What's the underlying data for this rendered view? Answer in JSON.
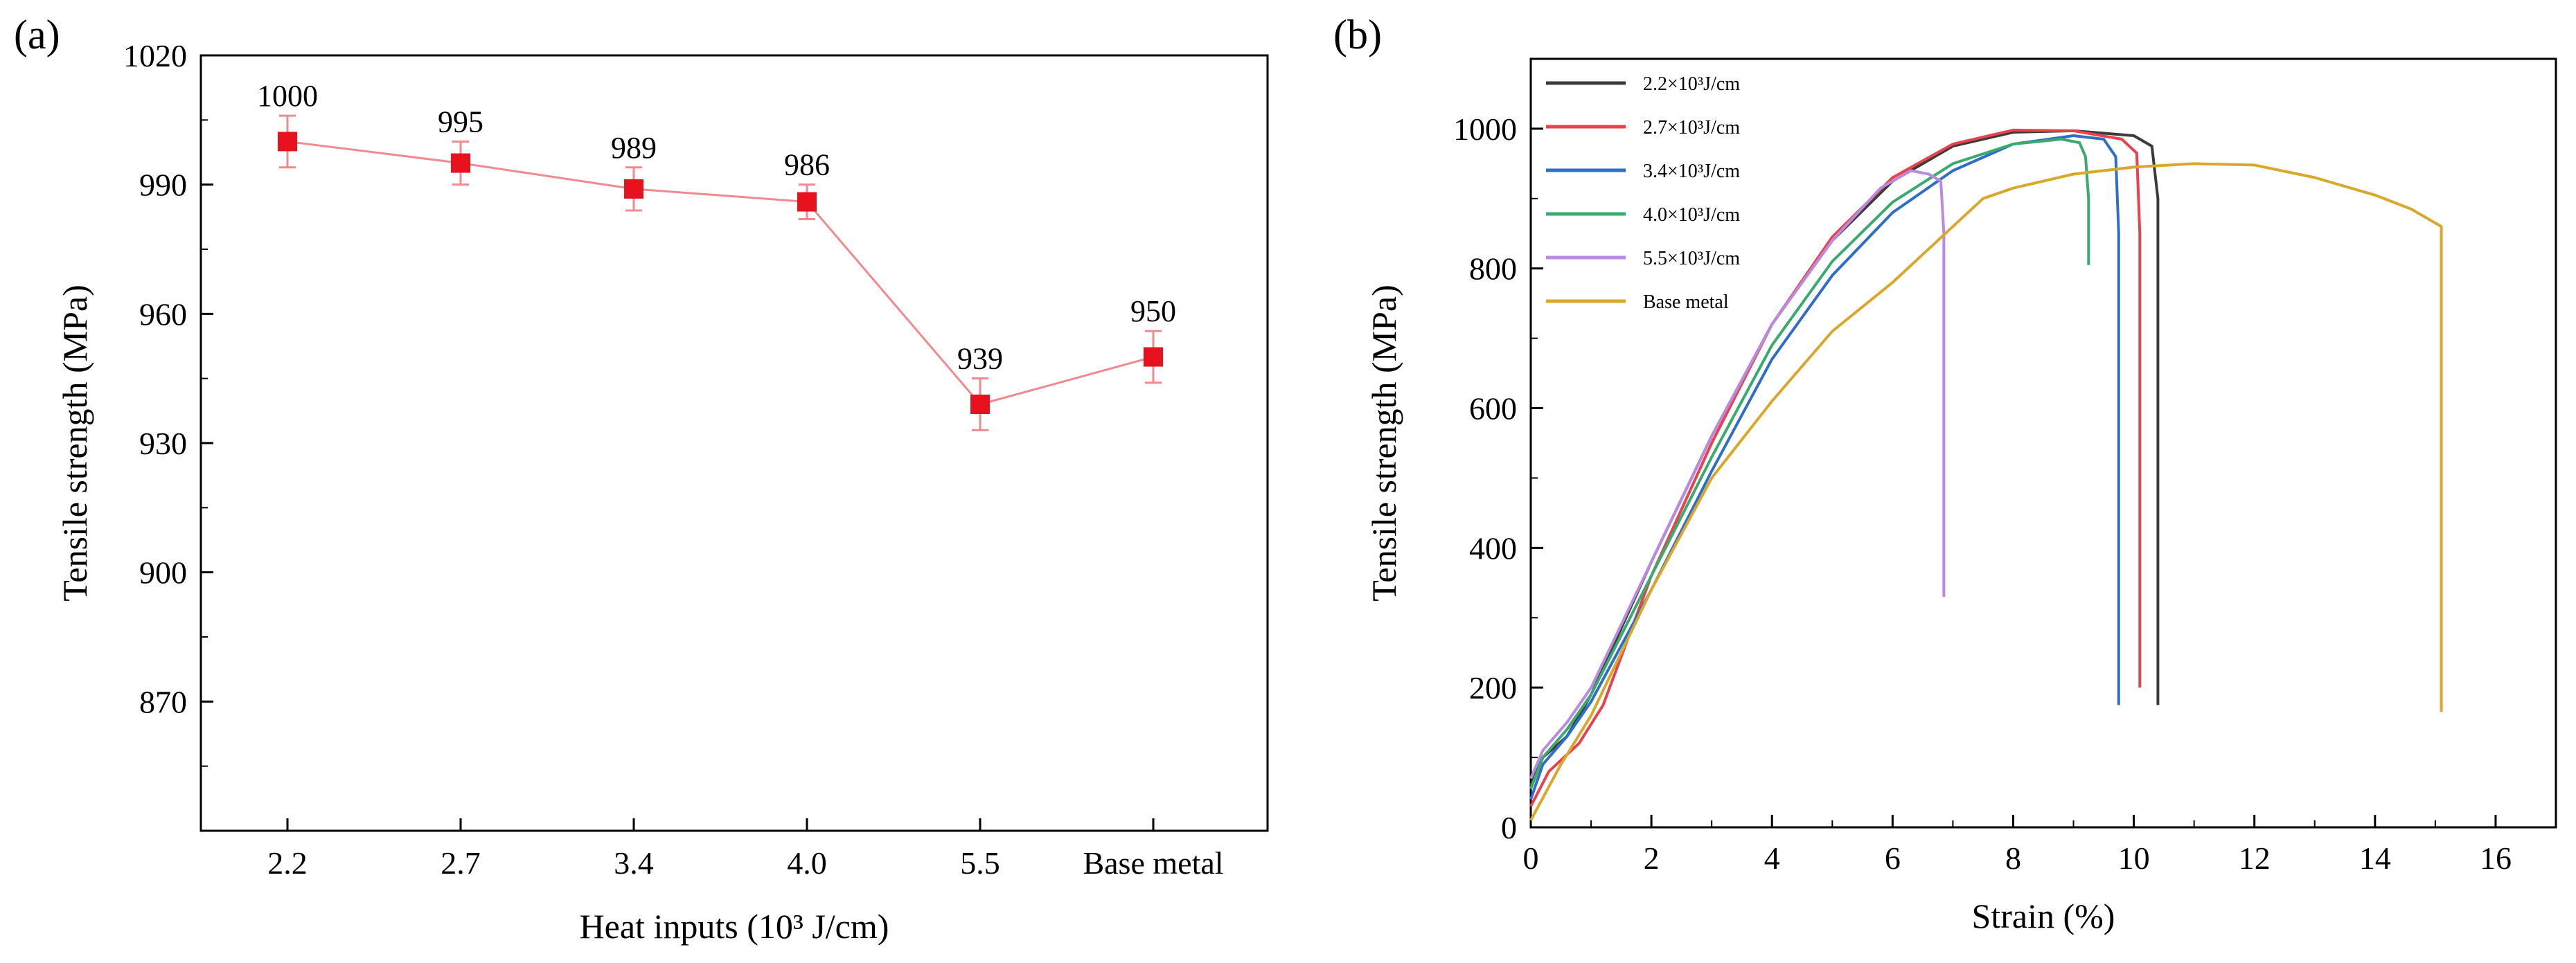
{
  "panel_labels": [
    "(a)",
    "(b)"
  ],
  "chart_data": [
    {
      "type": "line",
      "panel": "(a)",
      "xlabel": "Heat inputs (10³ J/cm)",
      "ylabel": "Tensile strength (MPa)",
      "categories": [
        "2.2",
        "2.7",
        "3.4",
        "4.0",
        "5.5",
        "Base metal"
      ],
      "values": [
        1000,
        995,
        989,
        986,
        939,
        950
      ],
      "value_labels": [
        "1000",
        "995",
        "989",
        "986",
        "939",
        "950"
      ],
      "error": [
        6,
        5,
        5,
        4,
        6,
        6
      ],
      "ylim": [
        840,
        1020
      ],
      "yticks": [
        870,
        900,
        930,
        960,
        990,
        1020
      ],
      "ytick_labels": [
        "870",
        "900",
        "930",
        "960",
        "990",
        "1020"
      ],
      "color": "#e8121e",
      "line_color": "#f08a8f"
    },
    {
      "type": "line",
      "panel": "(b)",
      "xlabel": "Strain (%)",
      "ylabel": "Tensile strength (MPa)",
      "xlim": [
        0,
        17
      ],
      "ylim": [
        0,
        1100
      ],
      "xticks": [
        0,
        2,
        4,
        6,
        8,
        10,
        12,
        14,
        16
      ],
      "xtick_labels": [
        "0",
        "2",
        "4",
        "6",
        "8",
        "10",
        "12",
        "14",
        "16"
      ],
      "yticks": [
        0,
        200,
        400,
        600,
        800,
        1000
      ],
      "ytick_labels": [
        "0",
        "200",
        "400",
        "600",
        "800",
        "1000"
      ],
      "legend_position": "top-left",
      "series": [
        {
          "name": "2.2×10³J/cm",
          "color": "#3b3b3b",
          "x": [
            0,
            0.2,
            0.6,
            1.0,
            2.0,
            3.0,
            4.0,
            5.0,
            6.0,
            7.0,
            8.0,
            9.0,
            10.0,
            10.3,
            10.4,
            10.4
          ],
          "y": [
            60,
            100,
            130,
            190,
            380,
            560,
            720,
            840,
            925,
            975,
            995,
            997,
            990,
            975,
            900,
            175
          ]
        },
        {
          "name": "2.7×10³J/cm",
          "color": "#e8424c",
          "x": [
            0,
            0.3,
            0.8,
            1.2,
            2.0,
            3.0,
            4.0,
            5.0,
            6.0,
            7.0,
            8.0,
            9.0,
            9.8,
            10.05,
            10.1,
            10.1
          ],
          "y": [
            30,
            80,
            120,
            175,
            360,
            550,
            720,
            845,
            930,
            978,
            998,
            997,
            985,
            965,
            850,
            200
          ]
        },
        {
          "name": "3.4×10³J/cm",
          "color": "#2f6ec8",
          "x": [
            0,
            0.2,
            0.6,
            1.0,
            2.0,
            3.0,
            4.0,
            5.0,
            6.0,
            7.0,
            8.0,
            9.0,
            9.5,
            9.7,
            9.75,
            9.75
          ],
          "y": [
            40,
            90,
            130,
            180,
            340,
            510,
            670,
            790,
            880,
            940,
            978,
            990,
            985,
            960,
            850,
            175
          ]
        },
        {
          "name": "4.0×10³J/cm",
          "color": "#3aaa6e",
          "x": [
            0,
            0.2,
            0.6,
            1.0,
            2.0,
            3.0,
            4.0,
            5.0,
            6.0,
            7.0,
            8.0,
            8.8,
            9.1,
            9.2,
            9.25,
            9.25
          ],
          "y": [
            55,
            100,
            140,
            190,
            360,
            530,
            690,
            810,
            895,
            950,
            978,
            985,
            980,
            960,
            900,
            805
          ]
        },
        {
          "name": "5.5×10³J/cm",
          "color": "#b98ae0",
          "x": [
            0,
            0.2,
            0.6,
            1.0,
            2.0,
            3.0,
            4.0,
            5.0,
            5.8,
            6.3,
            6.6,
            6.8,
            6.85,
            6.85
          ],
          "y": [
            70,
            110,
            150,
            200,
            380,
            560,
            720,
            840,
            915,
            940,
            935,
            925,
            850,
            330
          ]
        },
        {
          "name": "Base metal",
          "color": "#d9a82a",
          "x": [
            0,
            0.5,
            1.0,
            2.0,
            3.0,
            4.0,
            5.0,
            6.0,
            7.0,
            7.5,
            8.0,
            9.0,
            10.0,
            11.0,
            12.0,
            13.0,
            14.0,
            14.6,
            15.1,
            15.1
          ],
          "y": [
            10,
            90,
            160,
            340,
            500,
            610,
            710,
            780,
            860,
            900,
            915,
            935,
            945,
            950,
            948,
            930,
            905,
            885,
            860,
            165
          ]
        }
      ]
    }
  ]
}
